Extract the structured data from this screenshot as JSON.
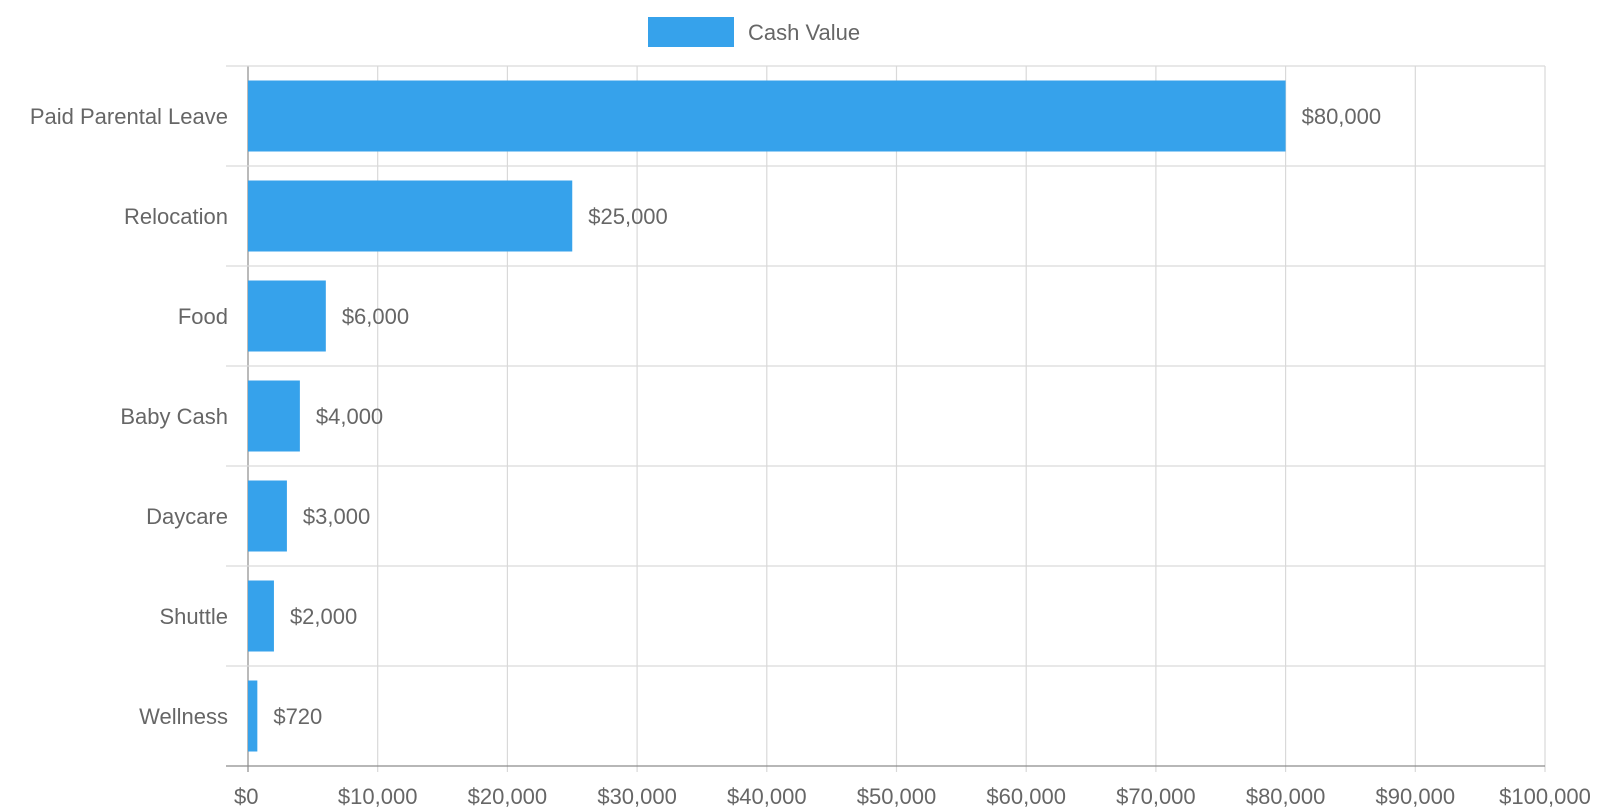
{
  "legend": {
    "label": "Cash Value"
  },
  "colors": {
    "bar": "#36A2EB",
    "grid": "#d9d9d9",
    "axis": "#8c8c8c",
    "text": "#666666"
  },
  "chart_data": {
    "type": "bar",
    "orientation": "horizontal",
    "categories": [
      "Paid Parental Leave",
      "Relocation",
      "Food",
      "Baby Cash",
      "Daycare",
      "Shuttle",
      "Wellness"
    ],
    "series": [
      {
        "name": "Cash Value",
        "values": [
          80000,
          25000,
          6000,
          4000,
          3000,
          2000,
          720
        ]
      }
    ],
    "value_labels": [
      "$80,000",
      "$25,000",
      "$6,000",
      "$4,000",
      "$3,000",
      "$2,000",
      "$720"
    ],
    "xlim": [
      0,
      100000
    ],
    "x_ticks": [
      0,
      10000,
      20000,
      30000,
      40000,
      50000,
      60000,
      70000,
      80000,
      90000,
      100000
    ],
    "x_tick_labels": [
      "$0",
      "$10,000",
      "$20,000",
      "$30,000",
      "$40,000",
      "$50,000",
      "$60,000",
      "$70,000",
      "$80,000",
      "$90,000",
      "$100,000"
    ],
    "grid": true,
    "legend_position": "top"
  }
}
